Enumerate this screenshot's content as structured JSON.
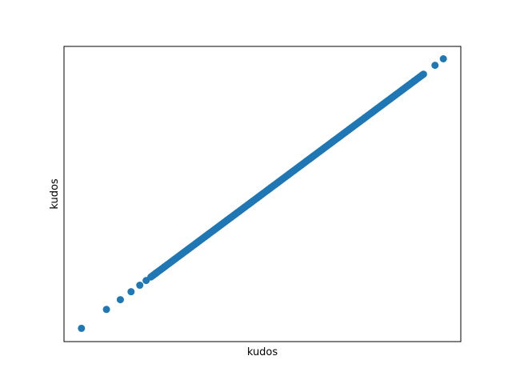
{
  "chart_data": {
    "type": "scatter",
    "title": "",
    "xlabel": "kudos",
    "ylabel": "kudos",
    "xticks": [],
    "yticks": [],
    "grid": false,
    "legend": false,
    "xlim": [
      0.0,
      1.0
    ],
    "ylim": [
      0.0,
      1.0
    ],
    "marker_color": "#1f77b4",
    "series": [
      {
        "points_outliers": [
          [
            0.044,
            0.045
          ],
          [
            0.107,
            0.109
          ],
          [
            0.142,
            0.142
          ],
          [
            0.169,
            0.169
          ],
          [
            0.191,
            0.191
          ],
          [
            0.207,
            0.207
          ],
          [
            0.219,
            0.219
          ],
          [
            0.232,
            0.232
          ],
          [
            0.906,
            0.906
          ],
          [
            0.935,
            0.936
          ],
          [
            0.956,
            0.958
          ]
        ],
        "dense_segment": {
          "x_start": 0.222,
          "y_start": 0.222,
          "x_end": 0.905,
          "y_end": 0.905,
          "count": 240
        }
      }
    ]
  }
}
